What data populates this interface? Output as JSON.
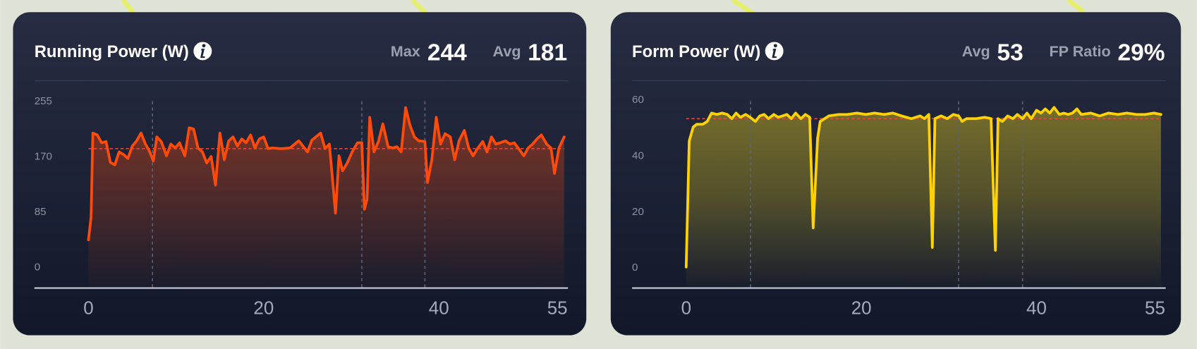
{
  "chart_data": [
    {
      "type": "area",
      "title": "Running Power (W)",
      "stats": [
        {
          "label": "Max",
          "value": 244
        },
        {
          "label": "Avg",
          "value": 181
        }
      ],
      "x": [
        0,
        0.3,
        0.5,
        1,
        1.5,
        2,
        2.5,
        3,
        3.5,
        4,
        4.5,
        5,
        5.5,
        6,
        6.5,
        7,
        7.4,
        7.8,
        8.3,
        8.9,
        9.4,
        9.9,
        10.4,
        11,
        11.5,
        12,
        12.5,
        13,
        13.5,
        14,
        14.5,
        15,
        15.5,
        16,
        16.5,
        17,
        17.5,
        18,
        18.5,
        19,
        19.5,
        20,
        20.5,
        21,
        22,
        23,
        24,
        25,
        25.5,
        26.5,
        27,
        27.5,
        28.2,
        28.6,
        29,
        29.5,
        30.1,
        30.7,
        31.2,
        31.5,
        31.8,
        32.1,
        32.6,
        33.1,
        33.6,
        34.2,
        34.7,
        35.2,
        35.7,
        36.2,
        36.7,
        37.2,
        37.7,
        38.4,
        38.7,
        39.2,
        39.7,
        40.2,
        40.7,
        41.3,
        41.8,
        42.3,
        42.9,
        43.4,
        43.9,
        44.4,
        45,
        45.5,
        46,
        46.5,
        47,
        47.6,
        48.1,
        48.6,
        49.1,
        49.7,
        50.2,
        50.7,
        51.2,
        51.7,
        52.3,
        52.8,
        53.2,
        53.7,
        54.3
      ],
      "values": [
        41,
        76,
        205,
        202,
        190,
        192,
        160,
        156,
        176,
        172,
        166,
        185,
        193,
        205,
        188,
        176,
        162,
        199,
        192,
        170,
        188,
        182,
        190,
        170,
        213,
        211,
        182,
        176,
        159,
        169,
        125,
        205,
        164,
        193,
        199,
        185,
        196,
        190,
        202,
        182,
        196,
        199,
        181,
        182,
        181,
        182,
        193,
        176,
        194,
        205,
        181,
        188,
        82,
        170,
        147,
        158,
        176,
        190,
        190,
        88,
        103,
        229,
        176,
        192,
        219,
        184,
        182,
        184,
        176,
        244,
        217,
        199,
        193,
        192,
        129,
        164,
        229,
        188,
        204,
        199,
        164,
        193,
        209,
        182,
        170,
        181,
        192,
        176,
        199,
        188,
        190,
        193,
        188,
        190,
        181,
        170,
        182,
        188,
        196,
        202,
        188,
        182,
        143,
        182,
        199
      ],
      "color": "#ff4a0a",
      "avg_color": "#e8453a",
      "laps": [
        7.3,
        31.2,
        38.4
      ],
      "xlim": [
        0,
        55
      ],
      "ylim": [
        -33,
        270
      ],
      "xticks": [
        0,
        20,
        40,
        55
      ],
      "yticks": [
        0,
        85,
        170,
        255
      ]
    },
    {
      "type": "area",
      "title": "Form Power (W)",
      "stats": [
        {
          "label": "Avg",
          "value": 53
        },
        {
          "label": "FP Ratio",
          "value": 29,
          "value_label": "29%"
        }
      ],
      "x": [
        0,
        0.35,
        0.8,
        1.2,
        1.9,
        2.4,
        2.9,
        3.5,
        4.1,
        4.7,
        5.2,
        5.7,
        6.2,
        6.8,
        7.3,
        7.9,
        8.4,
        8.9,
        9.4,
        10,
        10.5,
        11,
        11.5,
        12,
        12.5,
        13.1,
        13.6,
        14.1,
        14.5,
        15,
        15.3,
        15.8,
        16.3,
        17.4,
        18.4,
        19.5,
        20.5,
        21.5,
        22.6,
        23.6,
        24.6,
        25.7,
        26.7,
        27.2,
        27.7,
        28.1,
        28.4,
        29.1,
        29.8,
        30.5,
        31.1,
        31.5,
        32,
        33.1,
        34.1,
        34.8,
        35.3,
        35.6,
        36.1,
        36.7,
        37.3,
        37.8,
        38.4,
        38.9,
        39.4,
        40,
        40.5,
        41,
        41.5,
        42,
        42.6,
        43.1,
        43.6,
        44.1,
        44.6,
        45.1,
        46.2,
        47.2,
        48.2,
        49.3,
        50.3,
        51.4,
        52.4,
        53.4,
        54.2
      ],
      "values": [
        0,
        45,
        50,
        51,
        51,
        52,
        55,
        54.5,
        55,
        54.5,
        53,
        55,
        53.5,
        54.5,
        53.5,
        52,
        54,
        54.5,
        53,
        54.5,
        53.5,
        54,
        54.5,
        53,
        55,
        53,
        54.5,
        53.5,
        14,
        46,
        52,
        53,
        54,
        54.5,
        54.5,
        55,
        54.5,
        55,
        54.5,
        55,
        54,
        53,
        54,
        53,
        54.5,
        7,
        53,
        54,
        53,
        54.5,
        54,
        52,
        53,
        53,
        53.5,
        53,
        6,
        53,
        52,
        54,
        53,
        54.5,
        53,
        55,
        53,
        56,
        55,
        56.5,
        55,
        57,
        54.5,
        55,
        54.5,
        55,
        56.5,
        54.5,
        55,
        54,
        55,
        54.5,
        55,
        54.5,
        54.5,
        55,
        54.5
      ],
      "color": "#ffd200",
      "avg_color": "#e8453a",
      "laps": [
        7.35,
        31.1,
        38.4
      ],
      "xlim": [
        0,
        55
      ],
      "ylim": [
        -7.5,
        63
      ],
      "xticks": [
        0,
        20,
        40,
        55
      ],
      "yticks": [
        0,
        20,
        40,
        60
      ]
    }
  ]
}
